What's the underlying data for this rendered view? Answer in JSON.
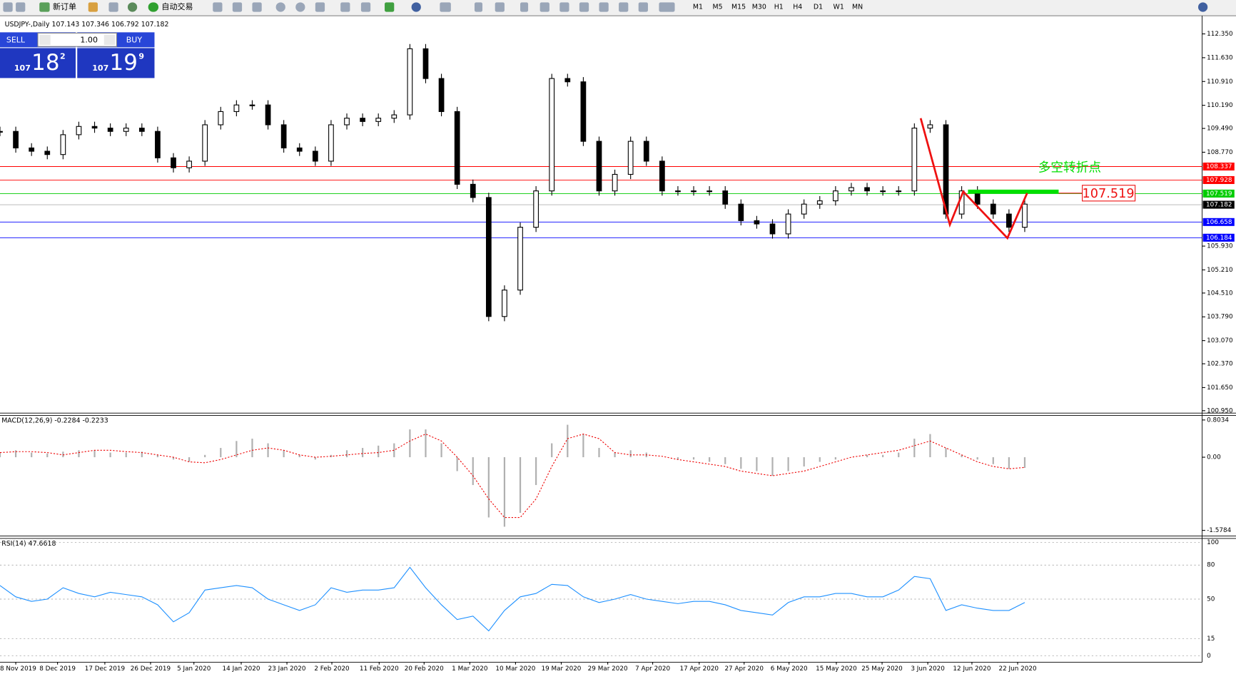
{
  "toolbar": {
    "new_order": "新订单",
    "auto_trading": "自动交易",
    "timeframes": [
      "M1",
      "M5",
      "M15",
      "M30",
      "H1",
      "H4",
      "D1",
      "W1",
      "MN"
    ]
  },
  "trade_panel": {
    "sell": "SELL",
    "buy": "BUY",
    "lots": "1.00",
    "sell_price": {
      "big": "107",
      "main": "18",
      "small": "2"
    },
    "buy_price": {
      "big": "107",
      "main": "19",
      "small": "9"
    }
  },
  "chart": {
    "header": "USDJPY-,Daily  107.143 107.346 106.792 107.182",
    "price": {
      "yticks": [
        {
          "value": 112.35,
          "label": "112.350"
        },
        {
          "value": 111.63,
          "label": "111.630"
        },
        {
          "value": 110.91,
          "label": "110.910"
        },
        {
          "value": 110.19,
          "label": "110.190"
        },
        {
          "value": 109.49,
          "label": "109.490"
        },
        {
          "value": 108.77,
          "label": "108.770"
        },
        {
          "value": 105.93,
          "label": "105.930"
        },
        {
          "value": 105.21,
          "label": "105.210"
        },
        {
          "value": 104.51,
          "label": "104.510"
        },
        {
          "value": 103.79,
          "label": "103.790"
        },
        {
          "value": 103.07,
          "label": "103.070"
        },
        {
          "value": 102.37,
          "label": "102.370"
        },
        {
          "value": 101.65,
          "label": "101.650"
        },
        {
          "value": 100.95,
          "label": "100.950"
        }
      ],
      "closes": [
        109.4,
        108.9,
        108.8,
        108.7,
        109.3,
        109.55,
        109.5,
        109.4,
        109.5,
        109.4,
        108.6,
        108.3,
        108.5,
        109.6,
        110.0,
        110.2,
        110.2,
        109.6,
        108.9,
        108.8,
        108.5,
        109.6,
        109.8,
        109.7,
        109.8,
        109.9,
        111.9,
        111.0,
        110.0,
        107.8,
        107.4,
        103.8,
        104.6,
        106.5,
        107.6,
        111.0,
        110.9,
        109.1,
        107.6,
        108.1,
        109.1,
        108.5,
        107.6,
        107.6,
        107.6,
        107.6,
        107.2,
        106.7,
        106.6,
        106.3,
        106.9,
        107.2,
        107.3,
        107.6,
        107.7,
        107.6,
        107.6,
        107.6,
        109.5,
        109.6,
        106.9,
        107.6,
        107.2,
        106.9,
        106.5,
        107.2
      ],
      "levels": [
        {
          "value": 108.337,
          "color": "#ff0000"
        },
        {
          "value": 107.928,
          "color": "#ff0000"
        },
        {
          "value": 107.519,
          "color": "#00cc00"
        },
        {
          "value": 107.182,
          "color": "#000000"
        },
        {
          "value": 106.658,
          "color": "#0000ff"
        },
        {
          "value": 106.184,
          "color": "#0000ff"
        }
      ]
    },
    "annotations": {
      "note": "多空转折点",
      "price_tag": 107.519
    },
    "macd": {
      "label": "MACD(12,26,9) -0.2284 -0.2233",
      "yticks": [
        0.8034,
        {
          "value": 0,
          "label": "0.00"
        },
        -1.5784
      ],
      "histogram": [
        0.1,
        0.15,
        0.1,
        0.08,
        0.12,
        0.15,
        0.15,
        0.1,
        0.1,
        0.12,
        0.05,
        -0.05,
        -0.1,
        0.05,
        0.2,
        0.35,
        0.4,
        0.3,
        0.15,
        0.05,
        -0.05,
        0.05,
        0.15,
        0.2,
        0.25,
        0.3,
        0.6,
        0.6,
        0.3,
        -0.3,
        -0.6,
        -1.3,
        -1.5,
        -1.2,
        -0.6,
        0.3,
        0.7,
        0.5,
        0.2,
        0.1,
        0.15,
        0.1,
        0,
        -0.05,
        -0.05,
        -0.1,
        -0.15,
        -0.25,
        -0.3,
        -0.4,
        -0.3,
        -0.2,
        -0.1,
        -0.05,
        0,
        0.05,
        0.05,
        0.1,
        0.4,
        0.5,
        0.2,
        0.05,
        -0.05,
        -0.15,
        -0.25,
        -0.23
      ],
      "signal": [
        0.1,
        0.12,
        0.12,
        0.1,
        0.05,
        0.1,
        0.15,
        0.15,
        0.12,
        0.1,
        0.05,
        0,
        -0.1,
        -0.12,
        -0.05,
        0.05,
        0.15,
        0.2,
        0.15,
        0.05,
        0,
        0.02,
        0.05,
        0.08,
        0.1,
        0.15,
        0.35,
        0.5,
        0.35,
        0,
        -0.4,
        -0.9,
        -1.3,
        -1.3,
        -0.9,
        -0.2,
        0.4,
        0.5,
        0.4,
        0.1,
        0.05,
        0.05,
        0.02,
        -0.05,
        -0.1,
        -0.15,
        -0.2,
        -0.3,
        -0.35,
        -0.4,
        -0.35,
        -0.3,
        -0.2,
        -0.1,
        0,
        0.05,
        0.1,
        0.15,
        0.25,
        0.35,
        0.2,
        0.05,
        -0.1,
        -0.2,
        -0.25,
        -0.22
      ]
    },
    "rsi": {
      "label": "RSI(14) 47.6618",
      "yticks": [
        100,
        80,
        50,
        15,
        0
      ],
      "values": [
        62,
        52,
        48,
        50,
        60,
        55,
        52,
        56,
        54,
        52,
        45,
        30,
        38,
        58,
        60,
        62,
        60,
        50,
        45,
        40,
        45,
        60,
        56,
        58,
        58,
        60,
        78,
        60,
        45,
        32,
        35,
        22,
        40,
        52,
        55,
        63,
        62,
        52,
        47,
        50,
        54,
        50,
        48,
        46,
        48,
        48,
        45,
        40,
        38,
        36,
        47,
        52,
        52,
        55,
        55,
        52,
        52,
        58,
        70,
        68,
        40,
        45,
        42,
        40,
        40,
        47
      ]
    },
    "dates": [
      "8 Nov 2019",
      "8 Dec 2019",
      "17 Dec 2019",
      "26 Dec 2019",
      "5 Jan 2020",
      "14 Jan 2020",
      "23 Jan 2020",
      "2 Feb 2020",
      "11 Feb 2020",
      "20 Feb 2020",
      "1 Mar 2020",
      "10 Mar 2020",
      "19 Mar 2020",
      "29 Mar 2020",
      "7 Apr 2020",
      "17 Apr 2020",
      "27 Apr 2020",
      "6 May 2020",
      "15 May 2020",
      "25 May 2020",
      "3 Jun 2020",
      "12 Jun 2020",
      "22 Jun 2020"
    ]
  }
}
